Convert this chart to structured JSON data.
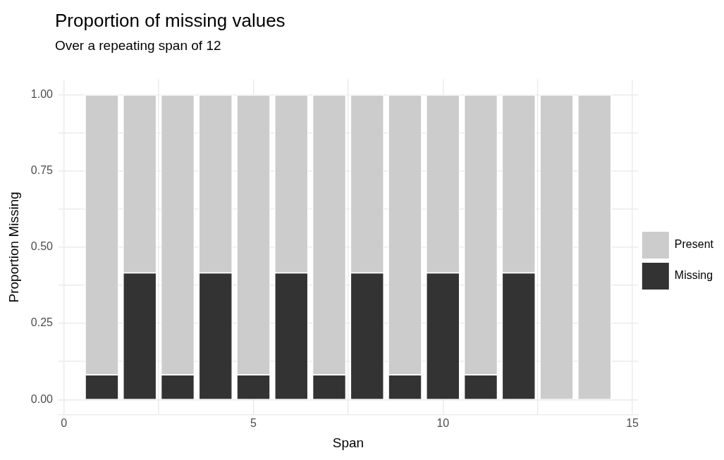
{
  "chart_data": {
    "type": "bar",
    "title": "Proportion of missing values",
    "subtitle": "Over a repeating span of 12",
    "xlabel": "Span",
    "ylabel": "Proportion Missing",
    "x": [
      1,
      2,
      3,
      4,
      5,
      6,
      7,
      8,
      9,
      10,
      11,
      12,
      13,
      14
    ],
    "stacked": true,
    "series": [
      {
        "name": "Missing",
        "color": "#333333",
        "values": [
          0.083,
          0.417,
          0.083,
          0.417,
          0.083,
          0.417,
          0.083,
          0.417,
          0.083,
          0.417,
          0.083,
          0.417,
          0,
          0
        ]
      },
      {
        "name": "Present",
        "color": "#cccccc",
        "values": [
          0.917,
          0.583,
          0.917,
          0.583,
          0.917,
          0.583,
          0.917,
          0.583,
          0.917,
          0.583,
          0.917,
          0.583,
          1,
          1
        ]
      }
    ],
    "xlim": [
      -0.145,
      15.145
    ],
    "xticks": [
      0,
      {
        "value": 2.5,
        "label": null
      },
      5,
      {
        "value": 7.5,
        "label": null
      },
      10,
      {
        "value": 12.5,
        "label": null
      },
      15
    ],
    "ylim": [
      -0.05,
      1.05
    ],
    "yticks": [
      {
        "value": 0,
        "label": "0.00"
      },
      {
        "value": 0.125,
        "label": null
      },
      {
        "value": 0.25,
        "label": "0.25"
      },
      {
        "value": 0.375,
        "label": null
      },
      {
        "value": 0.5,
        "label": "0.50"
      },
      {
        "value": 0.625,
        "label": null
      },
      {
        "value": 0.75,
        "label": "0.75"
      },
      {
        "value": 0.875,
        "label": null
      },
      {
        "value": 1,
        "label": "1.00"
      }
    ],
    "grid": true,
    "legend": "right"
  }
}
